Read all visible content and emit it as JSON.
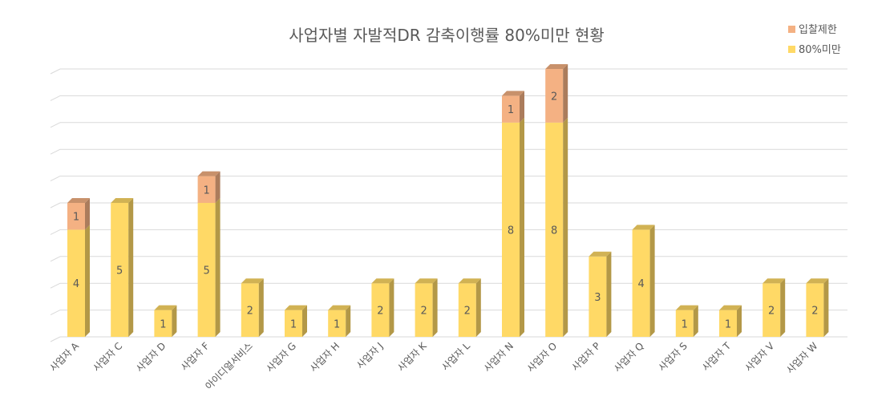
{
  "chart_data": {
    "type": "bar",
    "stacked": true,
    "title": "사업자별 자발적DR 감축이행률 80%미만 현황",
    "categories": [
      "사업자 A",
      "사업자 C",
      "사업자 D",
      "사업자 F",
      "아이디얼서비스",
      "사업자 G",
      "사업자 H",
      "사업자 J",
      "사업자 K",
      "사업자 L",
      "사업자 N",
      "사업자 O",
      "사업자 P",
      "사업자 Q",
      "사업자 S",
      "사업자 T",
      "사업자 V",
      "사업자 W"
    ],
    "series": [
      {
        "name": "80%미만",
        "color": "#ffd966",
        "values": [
          4,
          5,
          1,
          5,
          2,
          1,
          1,
          2,
          2,
          2,
          8,
          8,
          3,
          4,
          1,
          1,
          2,
          2
        ]
      },
      {
        "name": "입찰제한",
        "color": "#f4b183",
        "values": [
          1,
          0,
          0,
          1,
          0,
          0,
          0,
          0,
          0,
          0,
          1,
          2,
          0,
          0,
          0,
          0,
          0,
          0
        ]
      }
    ],
    "ylim": [
      0,
      10
    ],
    "grid": true,
    "legend_position": "top-right"
  }
}
